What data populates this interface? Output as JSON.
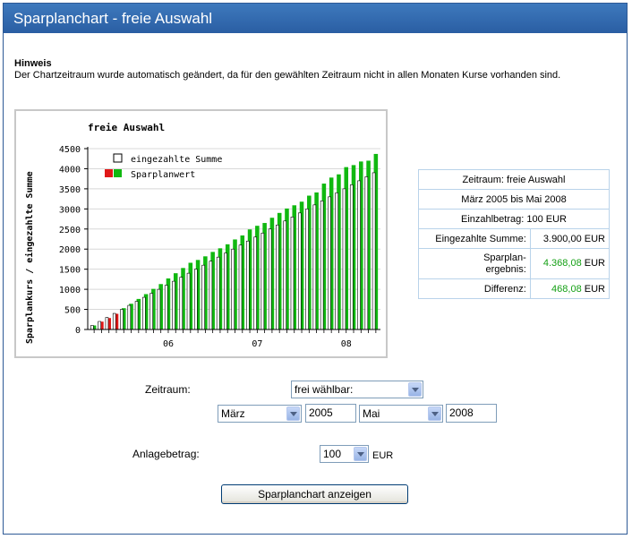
{
  "title": "Sparplanchart - freie Auswahl",
  "hint": {
    "heading": "Hinweis",
    "text": "Der Chartzeitraum wurde automatisch geändert, da für den gewählten Zeitraum nicht in allen Monaten Kurse vorhanden sind."
  },
  "chart_data": {
    "type": "bar",
    "title": "freie Auswahl",
    "ylabel": "Sparplankurs / eingezahlte Summe",
    "ylim": [
      0,
      4500
    ],
    "yticks": [
      0,
      500,
      1000,
      1500,
      2000,
      2500,
      3000,
      3500,
      4000,
      4500
    ],
    "xticks": [
      {
        "label": "06",
        "month_index": 10
      },
      {
        "label": "07",
        "month_index": 22
      },
      {
        "label": "08",
        "month_index": 34
      }
    ],
    "months": [
      "2005-03",
      "2005-04",
      "2005-05",
      "2005-06",
      "2005-07",
      "2005-08",
      "2005-09",
      "2005-10",
      "2005-11",
      "2005-12",
      "2006-01",
      "2006-02",
      "2006-03",
      "2006-04",
      "2006-05",
      "2006-06",
      "2006-07",
      "2006-08",
      "2006-09",
      "2006-10",
      "2006-11",
      "2006-12",
      "2007-01",
      "2007-02",
      "2007-03",
      "2007-04",
      "2007-05",
      "2007-06",
      "2007-07",
      "2007-08",
      "2007-09",
      "2007-10",
      "2007-11",
      "2007-12",
      "2008-01",
      "2008-02",
      "2008-03",
      "2008-04",
      "2008-05"
    ],
    "legend": [
      "eingezahlte Summe",
      "Sparplanwert"
    ],
    "colors": {
      "positive": "#10b810",
      "negative": "#e01818",
      "paid": "#ffffff"
    },
    "series": [
      {
        "name": "eingezahlte Summe",
        "values": [
          100,
          200,
          300,
          400,
          500,
          600,
          700,
          800,
          900,
          1000,
          1100,
          1200,
          1300,
          1400,
          1500,
          1600,
          1700,
          1800,
          1900,
          2000,
          2100,
          2200,
          2300,
          2400,
          2500,
          2600,
          2700,
          2800,
          2900,
          3000,
          3100,
          3200,
          3300,
          3400,
          3500,
          3600,
          3700,
          3800,
          3900
        ]
      },
      {
        "name": "Sparplanwert",
        "values": [
          100,
          195,
          285,
          390,
          530,
          640,
          760,
          880,
          1010,
          1130,
          1270,
          1400,
          1530,
          1660,
          1730,
          1820,
          1930,
          2020,
          2120,
          2240,
          2340,
          2490,
          2580,
          2650,
          2780,
          2900,
          3010,
          3090,
          3180,
          3330,
          3410,
          3630,
          3780,
          3860,
          4040,
          4090,
          4180,
          4200,
          4368
        ]
      }
    ]
  },
  "stats": {
    "zeitraum": "Zeitraum: freie Auswahl",
    "period": "März 2005 bis Mai 2008",
    "einzahlbetrag": "Einzahlbetrag: 100 EUR",
    "eingezahlte_label": "Eingezahlte Summe:",
    "eingezahlte_value": "3.900,00 EUR",
    "ergebnis_label_1": "Sparplan-",
    "ergebnis_label_2": "ergebnis:",
    "ergebnis_number": "4.368,08",
    "ergebnis_unit": "EUR",
    "differenz_label": "Differenz:",
    "differenz_number": "468,08",
    "differenz_unit": "EUR"
  },
  "form": {
    "zeitraum_label": "Zeitraum:",
    "zeitraum_select": "frei wählbar:",
    "start_month": "März",
    "start_year": "2005",
    "end_month": "Mai",
    "end_year": "2008",
    "anlage_label": "Anlagebetrag:",
    "anlage_value": "100",
    "anlage_unit": "EUR",
    "submit": "Sparplanchart anzeigen"
  }
}
